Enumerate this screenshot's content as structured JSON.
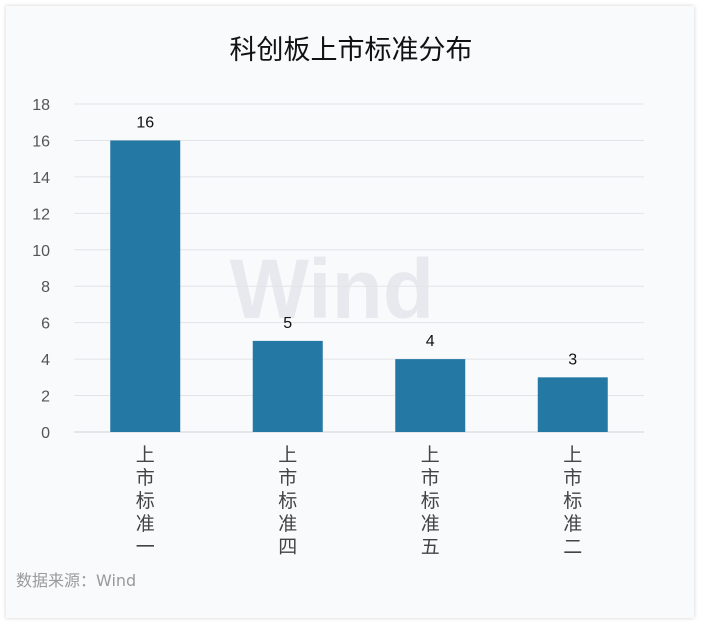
{
  "chart_data": {
    "type": "bar",
    "title": "科创板上市标准分布",
    "categories": [
      "上市标准一",
      "上市标准四",
      "上市标准五",
      "上市标准二"
    ],
    "values": [
      16,
      5,
      4,
      3
    ],
    "data_labels": [
      "16",
      "5",
      "4",
      "3"
    ],
    "y_ticks": [
      0,
      2,
      4,
      6,
      8,
      10,
      12,
      14,
      16,
      18
    ],
    "ylim": [
      0,
      18
    ],
    "xlabel": "",
    "ylabel": "",
    "grid": true,
    "legend": "none",
    "bar_color": "#2478a4",
    "watermark": "Wind"
  },
  "source_text": "数据来源：Wind"
}
